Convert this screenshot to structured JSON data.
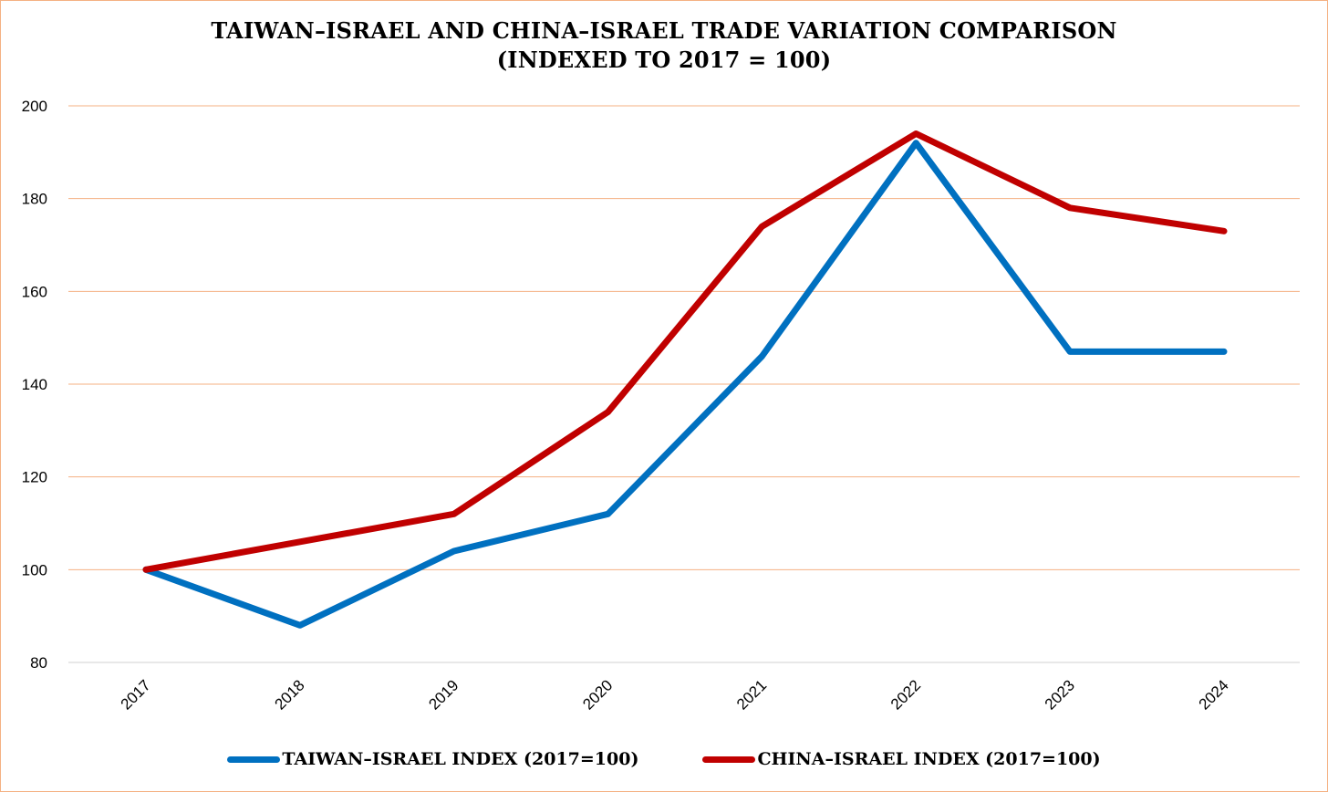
{
  "chart_data": {
    "type": "line",
    "title": "TAIWAN–ISRAEL AND CHINA–ISRAEL TRADE VARIATION COMPARISON",
    "subtitle": "(INDEXED TO 2017 = 100)",
    "xlabel": "",
    "ylabel": "",
    "categories": [
      "2017",
      "2018",
      "2019",
      "2020",
      "2021",
      "2022",
      "2023",
      "2024"
    ],
    "ylim": [
      80,
      200
    ],
    "yticks": [
      80,
      100,
      120,
      140,
      160,
      180,
      200
    ],
    "grid": true,
    "legend_position": "bottom",
    "series": [
      {
        "name": "TAIWAN–ISRAEL INDEX (2017=100)",
        "color": "#0070c0",
        "values": [
          100,
          88,
          104,
          112,
          146,
          192,
          147,
          147
        ]
      },
      {
        "name": "CHINA–ISRAEL INDEX (2017=100)",
        "color": "#c00000",
        "values": [
          100,
          106,
          112,
          134,
          174,
          194,
          178,
          173
        ]
      }
    ],
    "grid_color": "#f4b183",
    "axis_color": "#d9d9d9"
  }
}
